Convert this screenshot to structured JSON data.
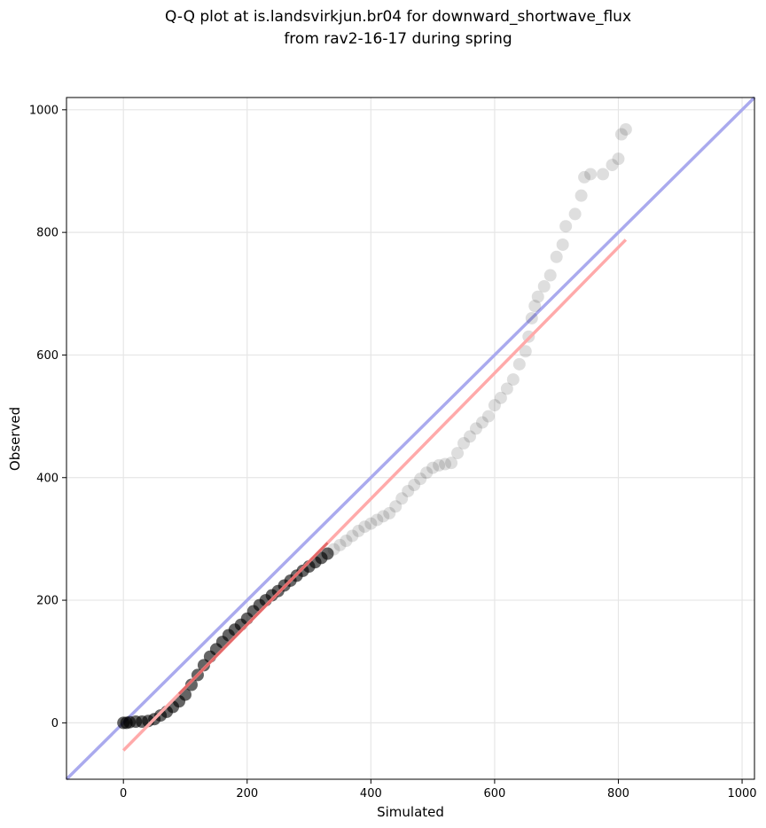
{
  "chart_data": {
    "type": "scatter",
    "title": [
      "Q-Q plot at is.landsvirkjun.br04 for downward_shortwave_flux",
      "from rav2-16-17 during spring"
    ],
    "xlabel": "Simulated",
    "ylabel": "Observed",
    "xlim": [
      -92,
      1020
    ],
    "ylim": [
      -92,
      1020
    ],
    "xticks": [
      0,
      200,
      400,
      600,
      800,
      1000
    ],
    "yticks": [
      0,
      200,
      400,
      600,
      800,
      1000
    ],
    "grid": true,
    "colors": {
      "points": "#000000",
      "identity_line": "#aaaaee",
      "fit_line": "#ffaaaa",
      "fit_line_dense": "#cc3333"
    },
    "identity_line": {
      "x": [
        -92,
        1020
      ],
      "y": [
        -92,
        1020
      ]
    },
    "fit_line": {
      "x": [
        0,
        812
      ],
      "y": [
        -45,
        788
      ]
    },
    "quantiles": [
      {
        "x": 0,
        "y": 0
      },
      {
        "x": 5,
        "y": 0
      },
      {
        "x": 10,
        "y": 1
      },
      {
        "x": 20,
        "y": 2
      },
      {
        "x": 30,
        "y": 2
      },
      {
        "x": 40,
        "y": 3
      },
      {
        "x": 50,
        "y": 6
      },
      {
        "x": 60,
        "y": 12
      },
      {
        "x": 70,
        "y": 18
      },
      {
        "x": 80,
        "y": 26
      },
      {
        "x": 90,
        "y": 35
      },
      {
        "x": 100,
        "y": 46
      },
      {
        "x": 110,
        "y": 62
      },
      {
        "x": 120,
        "y": 78
      },
      {
        "x": 130,
        "y": 94
      },
      {
        "x": 140,
        "y": 108
      },
      {
        "x": 150,
        "y": 120
      },
      {
        "x": 160,
        "y": 132
      },
      {
        "x": 170,
        "y": 143
      },
      {
        "x": 180,
        "y": 152
      },
      {
        "x": 190,
        "y": 160
      },
      {
        "x": 200,
        "y": 170
      },
      {
        "x": 210,
        "y": 182
      },
      {
        "x": 220,
        "y": 192
      },
      {
        "x": 230,
        "y": 200
      },
      {
        "x": 240,
        "y": 208
      },
      {
        "x": 250,
        "y": 215
      },
      {
        "x": 260,
        "y": 224
      },
      {
        "x": 270,
        "y": 232
      },
      {
        "x": 280,
        "y": 240
      },
      {
        "x": 290,
        "y": 248
      },
      {
        "x": 300,
        "y": 255
      },
      {
        "x": 310,
        "y": 262
      },
      {
        "x": 320,
        "y": 269
      },
      {
        "x": 330,
        "y": 276
      },
      {
        "x": 340,
        "y": 283
      },
      {
        "x": 350,
        "y": 290
      },
      {
        "x": 360,
        "y": 297
      },
      {
        "x": 370,
        "y": 305
      },
      {
        "x": 380,
        "y": 313
      },
      {
        "x": 390,
        "y": 320
      },
      {
        "x": 400,
        "y": 325
      },
      {
        "x": 410,
        "y": 331
      },
      {
        "x": 420,
        "y": 337
      },
      {
        "x": 430,
        "y": 342
      },
      {
        "x": 440,
        "y": 353
      },
      {
        "x": 450,
        "y": 366
      },
      {
        "x": 460,
        "y": 378
      },
      {
        "x": 470,
        "y": 388
      },
      {
        "x": 480,
        "y": 398
      },
      {
        "x": 490,
        "y": 408
      },
      {
        "x": 500,
        "y": 416
      },
      {
        "x": 510,
        "y": 420
      },
      {
        "x": 520,
        "y": 422
      },
      {
        "x": 530,
        "y": 424
      },
      {
        "x": 540,
        "y": 440
      },
      {
        "x": 550,
        "y": 456
      },
      {
        "x": 560,
        "y": 467
      },
      {
        "x": 570,
        "y": 480
      },
      {
        "x": 580,
        "y": 490
      },
      {
        "x": 590,
        "y": 500
      },
      {
        "x": 600,
        "y": 518
      },
      {
        "x": 610,
        "y": 530
      },
      {
        "x": 620,
        "y": 545
      },
      {
        "x": 630,
        "y": 560
      },
      {
        "x": 640,
        "y": 585
      },
      {
        "x": 650,
        "y": 606
      },
      {
        "x": 655,
        "y": 630
      },
      {
        "x": 660,
        "y": 660
      },
      {
        "x": 665,
        "y": 680
      },
      {
        "x": 670,
        "y": 695
      },
      {
        "x": 680,
        "y": 712
      },
      {
        "x": 690,
        "y": 730
      },
      {
        "x": 700,
        "y": 760
      },
      {
        "x": 710,
        "y": 780
      },
      {
        "x": 715,
        "y": 810
      },
      {
        "x": 730,
        "y": 830
      },
      {
        "x": 740,
        "y": 860
      },
      {
        "x": 745,
        "y": 890
      },
      {
        "x": 755,
        "y": 895
      },
      {
        "x": 775,
        "y": 895
      },
      {
        "x": 790,
        "y": 910
      },
      {
        "x": 800,
        "y": 920
      },
      {
        "x": 805,
        "y": 960
      },
      {
        "x": 812,
        "y": 968
      }
    ]
  }
}
